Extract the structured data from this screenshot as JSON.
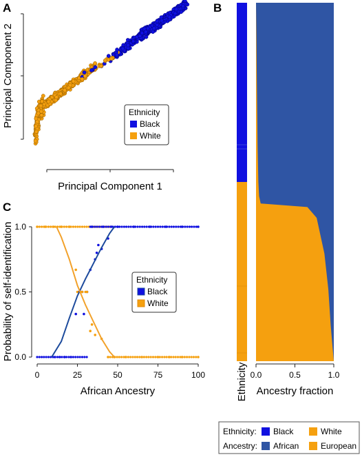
{
  "colors": {
    "black_ethnicity": "#1010e0",
    "white_ethnicity": "#f5a00f",
    "african_ancestry": "#2f55a4",
    "european_ancestry": "#f5a00f",
    "black_curve": "#1c4a9c",
    "white_curve": "#f2a12a"
  },
  "panels": {
    "a": {
      "letter": "A"
    },
    "b": {
      "letter": "B"
    },
    "c": {
      "letter": "C"
    }
  },
  "chart_data": [
    {
      "panel": "A",
      "type": "scatter",
      "xlabel": "Principal Component 1",
      "ylabel": "Principal Component 2",
      "x_tick_labels": false,
      "y_tick_labels": false,
      "legend": {
        "title": "Ethnicity",
        "placement": "right",
        "entries": [
          "Black",
          "White"
        ]
      },
      "series": [
        {
          "name": "Black",
          "x": [
            0.5,
            0.55,
            0.6,
            0.65,
            0.7,
            0.75,
            0.8,
            0.85,
            0.9,
            0.95,
            1.0
          ],
          "y": [
            0.62,
            0.66,
            0.7,
            0.74,
            0.78,
            0.82,
            0.85,
            0.89,
            0.92,
            0.96,
            1.0
          ]
        },
        {
          "name": "White",
          "x": [
            0.0,
            0.02,
            0.05,
            0.1,
            0.15,
            0.2,
            0.25,
            0.3,
            0.35,
            0.4
          ],
          "y": [
            0.1,
            0.25,
            0.3,
            0.33,
            0.37,
            0.41,
            0.45,
            0.49,
            0.53,
            0.57
          ]
        }
      ]
    },
    {
      "panel": "B",
      "type": "bar",
      "orientation": "horizontal-stacked",
      "xlabel": "Ancestry fraction",
      "ethnicity_label": "Ethnicity",
      "xlim": [
        0,
        1
      ],
      "x_ticks": [
        "0.0",
        "0.5",
        "1.0"
      ],
      "ethnicity_black_fraction_of_samples": 0.44,
      "sorted_samples": {
        "sample_quantile": [
          0.0,
          0.1,
          0.2,
          0.3,
          0.4,
          0.43,
          0.44,
          0.46,
          0.5,
          0.6,
          0.7,
          0.8,
          0.9,
          1.0
        ],
        "european_fraction": [
          1.0,
          0.96,
          0.93,
          0.88,
          0.78,
          0.66,
          0.06,
          0.04,
          0.03,
          0.02,
          0.015,
          0.01,
          0.005,
          0.0
        ]
      },
      "series": [
        {
          "name": "African"
        },
        {
          "name": "European"
        }
      ]
    },
    {
      "panel": "C",
      "type": "scatter",
      "xlabel": "African Ancestry",
      "ylabel": "Probability of self-identification",
      "xlim": [
        0,
        100
      ],
      "ylim": [
        0,
        1
      ],
      "x_ticks": [
        "0",
        "25",
        "50",
        "75",
        "100"
      ],
      "y_ticks": [
        "0.0",
        "0.5",
        "1.0"
      ],
      "legend": {
        "title": "Ethnicity",
        "placement": "right",
        "entries": [
          "Black",
          "White"
        ]
      },
      "series": [
        {
          "name": "Black",
          "points": [
            [
              11,
              0
            ],
            [
              14,
              0
            ],
            [
              17,
              0
            ],
            [
              21,
              0
            ],
            [
              24,
              0.33
            ],
            [
              26,
              0.5
            ],
            [
              27,
              0.5
            ],
            [
              28,
              0.5
            ],
            [
              29,
              0.33
            ],
            [
              31,
              0.5
            ],
            [
              33,
              0.67
            ],
            [
              34,
              1
            ],
            [
              36,
              0.75
            ],
            [
              37,
              0.8
            ],
            [
              38,
              0.86
            ],
            [
              40,
              0.83
            ],
            [
              41,
              1
            ],
            [
              44,
              0.91
            ],
            [
              46,
              1
            ],
            [
              50,
              1
            ],
            [
              60,
              1
            ],
            [
              70,
              1
            ],
            [
              80,
              1
            ],
            [
              90,
              1
            ],
            [
              100,
              1
            ]
          ],
          "fit": {
            "x": [
              9,
              15,
              20,
              25,
              30,
              35,
              40,
              45,
              48
            ],
            "y": [
              0,
              0.12,
              0.3,
              0.47,
              0.6,
              0.72,
              0.84,
              0.95,
              1.0
            ]
          }
        },
        {
          "name": "White",
          "points": [
            [
              0,
              1
            ],
            [
              5,
              1
            ],
            [
              10,
              1
            ],
            [
              15,
              1
            ],
            [
              20,
              1
            ],
            [
              24,
              0.67
            ],
            [
              25,
              0.5
            ],
            [
              27,
              0.5
            ],
            [
              28,
              0.5
            ],
            [
              30,
              0.5
            ],
            [
              31,
              0.5
            ],
            [
              33,
              0.2
            ],
            [
              34,
              0.25
            ],
            [
              36,
              0.17
            ],
            [
              40,
              0.14
            ],
            [
              44,
              0
            ],
            [
              48,
              0
            ],
            [
              55,
              0
            ],
            [
              65,
              0
            ],
            [
              75,
              0
            ],
            [
              82,
              0
            ],
            [
              90,
              0
            ],
            [
              100,
              0
            ]
          ],
          "fit": {
            "x": [
              12,
              15,
              20,
              25,
              30,
              35,
              40,
              45,
              48
            ],
            "y": [
              1.0,
              0.92,
              0.75,
              0.55,
              0.4,
              0.27,
              0.14,
              0.04,
              0.0
            ]
          }
        }
      ]
    }
  ],
  "bottom_legend": {
    "ethnicity_label": "Ethnicity:",
    "ancestry_label": "Ancestry:",
    "items": {
      "black": "Black",
      "white": "White",
      "african": "African",
      "european": "European"
    }
  }
}
